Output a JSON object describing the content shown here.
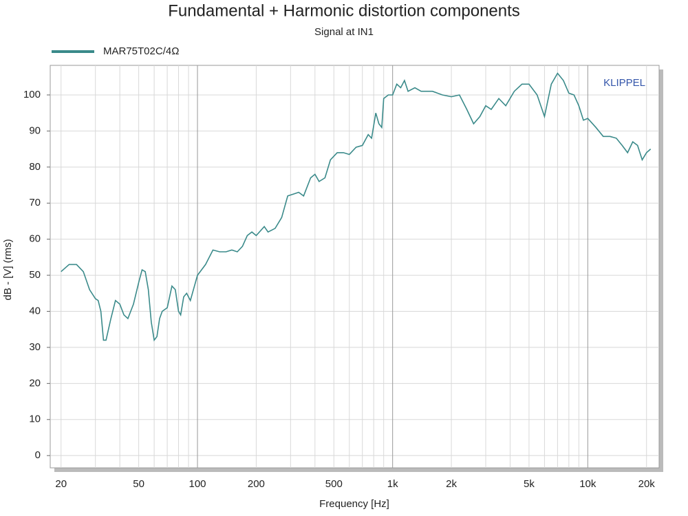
{
  "chart_data": {
    "type": "line",
    "title": "Fundamental + Harmonic distortion components",
    "subtitle": "Signal at IN1",
    "x_label": "Frequency [Hz]",
    "y_label": "dB - [V]  (rms)",
    "annotation": "KLIPPEL",
    "x_scale": "log",
    "grid": true,
    "legend_position": "top-left",
    "xlim": [
      17.6,
      23200
    ],
    "ylim": [
      -3.4,
      108.2
    ],
    "xticks": [
      20,
      50,
      100,
      200,
      500,
      {
        "value": 1000,
        "label": "1k"
      },
      {
        "value": 2000,
        "label": "2k"
      },
      {
        "value": 5000,
        "label": "5k"
      },
      {
        "value": 10000,
        "label": "10k"
      },
      {
        "value": 20000,
        "label": "20k"
      }
    ],
    "x_minor_ticks": [
      30,
      40,
      60,
      70,
      80,
      90,
      300,
      400,
      600,
      700,
      800,
      900,
      3000,
      4000,
      6000,
      7000,
      8000,
      9000
    ],
    "yticks": [
      0,
      10,
      20,
      30,
      40,
      50,
      60,
      70,
      80,
      90,
      100
    ],
    "x": [
      20,
      22,
      24,
      26,
      28,
      30,
      31,
      32,
      33,
      34,
      36,
      38,
      40,
      42,
      44,
      47,
      50,
      52,
      54,
      56,
      58,
      60,
      62,
      64,
      66,
      70,
      74,
      77,
      80,
      82,
      85,
      88,
      92,
      100,
      110,
      120,
      130,
      140,
      150,
      160,
      170,
      180,
      190,
      200,
      220,
      230,
      250,
      270,
      290,
      310,
      330,
      350,
      380,
      400,
      420,
      450,
      480,
      520,
      560,
      600,
      650,
      700,
      750,
      780,
      820,
      850,
      880,
      900,
      950,
      1000,
      1050,
      1100,
      1150,
      1200,
      1300,
      1400,
      1500,
      1600,
      1800,
      2000,
      2200,
      2400,
      2600,
      2800,
      3000,
      3200,
      3500,
      3800,
      4200,
      4600,
      5000,
      5500,
      6000,
      6500,
      7000,
      7500,
      8000,
      8500,
      9000,
      9500,
      10000,
      11000,
      12000,
      13000,
      14000,
      15000,
      16000,
      17000,
      18000,
      19000,
      20000,
      21000
    ],
    "series": [
      {
        "name": "MAR75T02C/4Ω",
        "color": "#3a8a8a",
        "values": [
          51,
          53,
          53,
          51,
          46,
          43.5,
          43,
          40,
          32,
          32,
          38,
          43,
          42,
          39,
          38,
          42,
          48,
          51.5,
          51,
          46,
          37,
          32,
          33,
          38,
          40,
          41,
          47,
          46,
          40,
          39,
          44,
          45,
          43,
          50,
          53,
          57,
          56.5,
          56.5,
          57,
          56.5,
          58,
          61,
          62,
          61,
          63.5,
          62,
          63,
          66,
          72,
          72.5,
          73,
          72,
          77,
          78,
          76,
          77,
          82,
          84,
          84,
          83.5,
          85.5,
          86,
          89,
          88,
          95,
          92,
          91,
          99,
          100,
          100,
          103,
          102,
          104,
          101,
          102,
          101,
          101,
          101,
          100,
          99.5,
          100,
          96,
          92,
          94,
          97,
          96,
          99,
          97,
          101,
          103,
          103,
          100,
          94,
          103,
          106,
          104,
          100.5,
          100,
          97,
          93,
          93.5,
          91,
          88.5,
          88.5,
          88,
          86,
          84,
          87,
          86,
          82,
          84,
          85
        ]
      }
    ]
  }
}
